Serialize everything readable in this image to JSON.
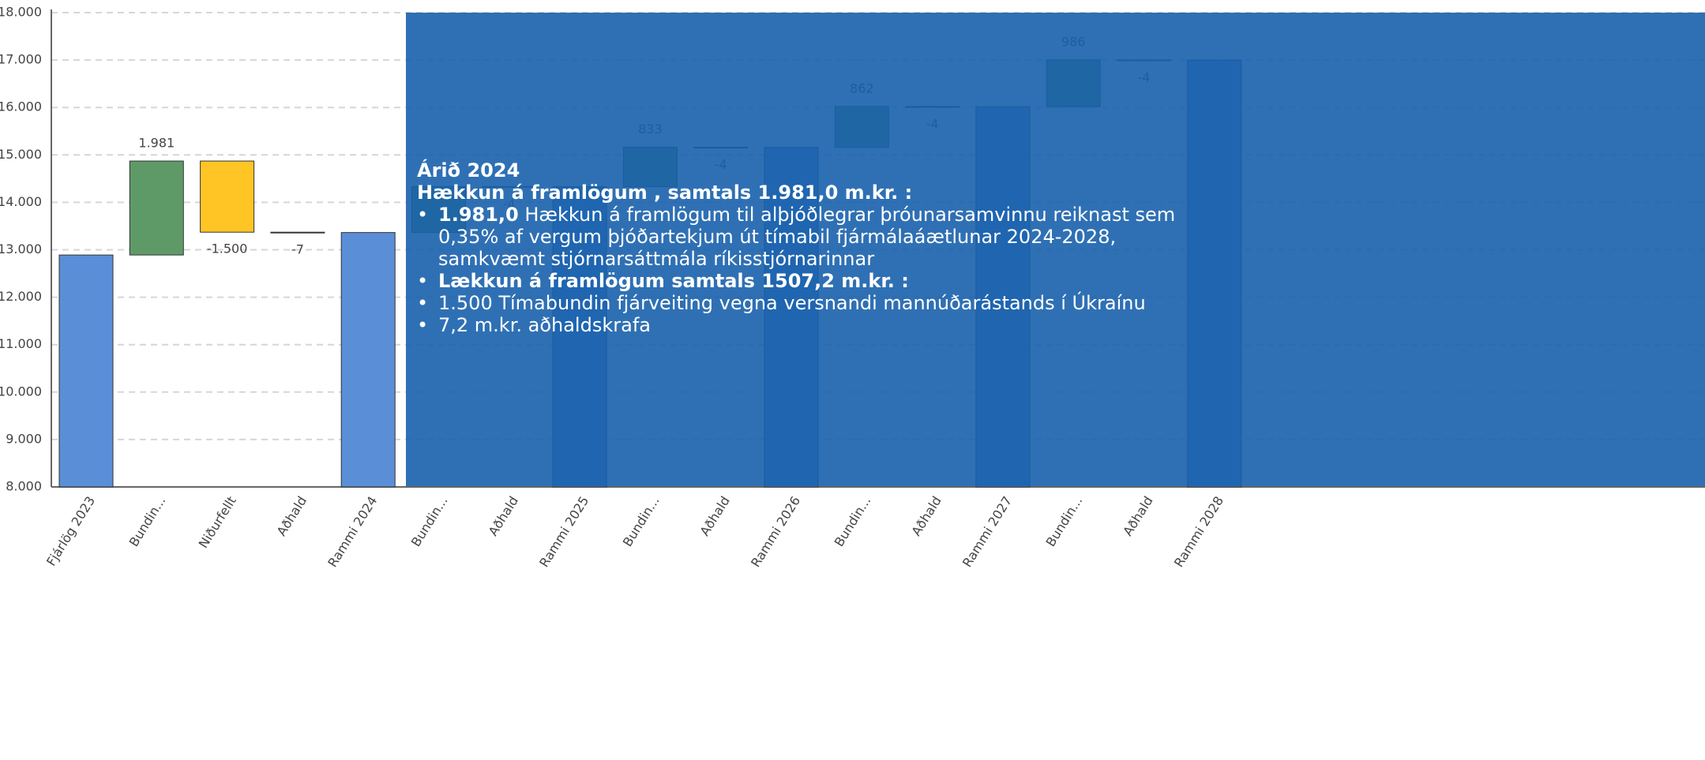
{
  "chart_data": {
    "type": "waterfall",
    "categories": [
      "Fjárlög 2023",
      "Bundin...",
      "Niðurfellt",
      "Aðhald",
      "Rammi 2024",
      "Bundin...",
      "Aðhald",
      "Rammi 2025",
      "Bundin...",
      "Aðhald",
      "Rammi 2026",
      "Bundin...",
      "Aðhald",
      "Rammi 2027",
      "Bundin...",
      "Aðhald",
      "Rammi 2028"
    ],
    "values": [
      12890,
      1981,
      -1500,
      -7,
      13364,
      970,
      -4,
      14330,
      833,
      -4,
      15159,
      862,
      -4,
      16017,
      986,
      -4,
      16999
    ],
    "value_labels": [
      null,
      "1.981",
      "-1.500",
      "-7",
      null,
      null,
      "-4",
      null,
      "833",
      "-4",
      null,
      "862",
      "-4",
      null,
      "986",
      "-4",
      null
    ],
    "is_total": [
      true,
      false,
      false,
      false,
      true,
      false,
      false,
      true,
      false,
      false,
      true,
      false,
      false,
      true,
      false,
      false,
      true
    ],
    "colors": {
      "total": "#5a8fd8",
      "increase": "#5e9a68",
      "decrease": "#ffc525"
    },
    "ylim": [
      8000,
      18000
    ],
    "yticks": [
      {
        "value": 8000,
        "label": "8.000"
      },
      {
        "value": 9000,
        "label": "9.000"
      },
      {
        "value": 10000,
        "label": "10.000"
      },
      {
        "value": 11000,
        "label": "11.000"
      },
      {
        "value": 12000,
        "label": "12.000"
      },
      {
        "value": 13000,
        "label": "13.000"
      },
      {
        "value": 14000,
        "label": "14.000"
      },
      {
        "value": 15000,
        "label": "15.000"
      },
      {
        "value": 16000,
        "label": "16.000"
      },
      {
        "value": 17000,
        "label": "17.000"
      },
      {
        "value": 18000,
        "label": "18.000"
      }
    ],
    "grid": true
  },
  "tooltip": {
    "title": "Árið 2024",
    "heading": "Hækkun á framlögum , samtals 1.981,0 m.kr. :",
    "bullets": [
      {
        "bold": "1.981,0",
        "text": "Hækkun á framlögum til alþjóðlegrar þróunarsamvinnu reiknast sem 0,35% af vergum þjóðartekjum út tímabil fjármálaáætlunar 2024-2028, samkvæmt stjórnarsáttmála ríkisstjórnarinnar"
      },
      {
        "bold": "Lækkun á framlögum samtals 1507,2 m.kr. :"
      },
      {
        "text": "1.500 Tímabundin fjárveiting vegna versnandi mannúðarástands í Úkraínu"
      },
      {
        "text": "7,2 m.kr. aðhaldskrafa"
      }
    ]
  }
}
